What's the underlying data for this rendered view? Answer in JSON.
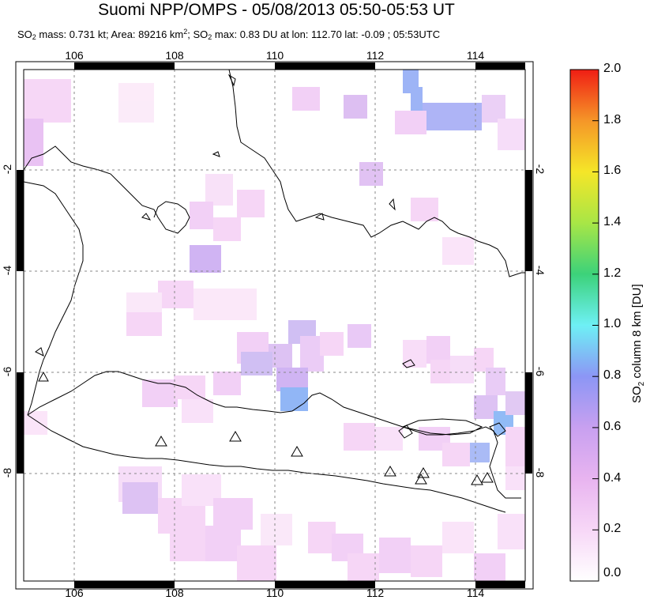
{
  "header": {
    "title": "Suomi NPP/OMPS - 05/08/2013 05:50-05:53 UT",
    "stats_prefix": "SO",
    "stats_sub1": "2",
    "stats_mid1": " mass: 0.731 kt; Area: 89216 km",
    "stats_sup": "2",
    "stats_mid2": "; SO",
    "stats_sub2": "2",
    "stats_suffix": " max: 0.83 DU at lon: 112.70 lat: -0.09 ; 05:53UTC"
  },
  "map": {
    "lon_ticks": [
      "106",
      "108",
      "110",
      "112",
      "114"
    ],
    "lat_ticks": [
      "-2",
      "-4",
      "-6",
      "-8"
    ],
    "volcano_marker": "triangle-icon"
  },
  "colorbar": {
    "title_prefix": "SO",
    "title_sub": "2",
    "title_suffix": " column 8 km [DU]",
    "labels": [
      "2.0",
      "1.8",
      "1.6",
      "1.4",
      "1.2",
      "1.0",
      "0.8",
      "0.6",
      "0.4",
      "0.2",
      "0.0"
    ],
    "colors": [
      "#ffffff",
      "#f5c8f5",
      "#c89bf0",
      "#7e96f5",
      "#6ef0f5",
      "#50e06e",
      "#b4e83c",
      "#f5e628",
      "#f59628",
      "#f01e14"
    ]
  }
}
